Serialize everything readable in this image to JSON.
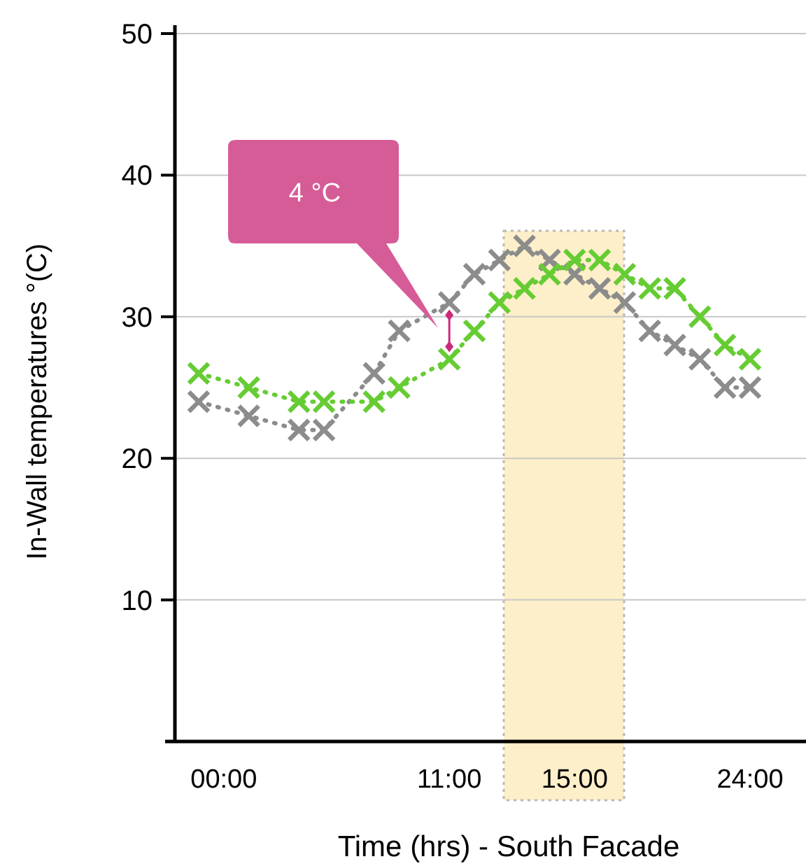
{
  "chart_data": {
    "type": "line",
    "xlabel": "Time (hrs) - South Facade",
    "ylabel": "In-Wall temperatures °(C)",
    "categories": [
      null,
      "00:00",
      null,
      null,
      null,
      null,
      null,
      null,
      null,
      null,
      "11:00",
      null,
      null,
      null,
      null,
      "15:00",
      null,
      null,
      null,
      null,
      null,
      null,
      "24:00"
    ],
    "ylim": [
      0,
      50
    ],
    "yticks": [
      10,
      20,
      30,
      40,
      50
    ],
    "grid": "y",
    "marker": "cross",
    "line_style": "dotted",
    "series": [
      {
        "color": "#8c8c8c",
        "values": [
          24,
          null,
          23,
          null,
          22,
          22,
          null,
          26,
          29,
          null,
          31,
          33,
          34,
          35,
          34,
          33,
          32,
          31,
          29,
          28,
          27,
          25,
          25
        ]
      },
      {
        "color": "#66cc33",
        "values": [
          26,
          null,
          25,
          null,
          24,
          24,
          null,
          24,
          25,
          null,
          27,
          29,
          31,
          32,
          33,
          34,
          34,
          33,
          32,
          32,
          30,
          28,
          27
        ]
      }
    ],
    "annotations": [
      "4 °C"
    ]
  }
}
